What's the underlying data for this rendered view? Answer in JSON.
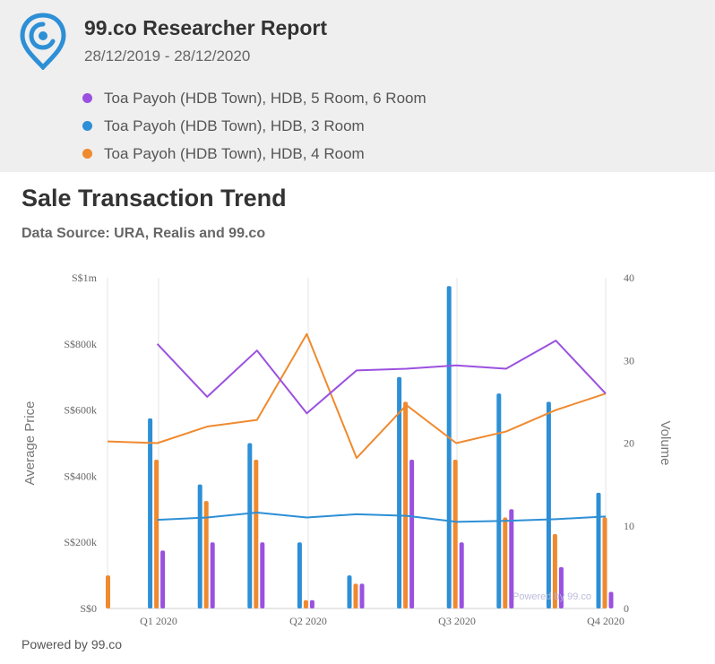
{
  "header": {
    "title": "99.co Researcher Report",
    "date_range": "28/12/2019 - 28/12/2020",
    "logo_icon": "location-pin-icon"
  },
  "section": {
    "title": "Sale Transaction Trend",
    "source": "Data Source: URA, Realis and 99.co"
  },
  "footer": {
    "powered_by": "Powered by 99.co"
  },
  "colors": {
    "purple": "#9b51e0",
    "blue": "#2d8fd6",
    "orange": "#ef8a2f"
  },
  "chart_data": {
    "type": "bar+line",
    "ylabel": "Average Price",
    "y2label": "Volume",
    "ylim": [
      0,
      1000000
    ],
    "y2lim": [
      0,
      40
    ],
    "y_ticks": [
      "S$0",
      "S$200k",
      "S$400k",
      "S$600k",
      "S$800k",
      "S$1m"
    ],
    "y2_ticks": [
      "0",
      "10",
      "20",
      "30",
      "40"
    ],
    "x_ticks": [
      "Q1 2020",
      "Q2 2020",
      "Q3 2020",
      "Q4 2020"
    ],
    "watermark": "Powered by 99.co",
    "grid": "vertical",
    "series": [
      {
        "name": "Toa Payoh (HDB Town), HDB, 5 Room, 6 Room",
        "color": "#9b51e0",
        "volume": [
          0,
          7,
          8,
          8,
          1,
          3,
          18,
          8,
          12,
          5,
          2
        ],
        "avg_price": [
          null,
          800000,
          640000,
          780000,
          590000,
          720000,
          725000,
          735000,
          725000,
          810000,
          650000
        ]
      },
      {
        "name": "Toa Payoh (HDB Town), HDB, 3 Room",
        "color": "#2d8fd6",
        "volume": [
          0,
          23,
          15,
          20,
          8,
          4,
          28,
          39,
          26,
          25,
          14
        ],
        "avg_price": [
          null,
          268000,
          275000,
          290000,
          275000,
          285000,
          280000,
          262000,
          265000,
          270000,
          278000
        ]
      },
      {
        "name": "Toa Payoh (HDB Town), HDB, 4 Room",
        "color": "#ef8a2f",
        "volume": [
          4,
          18,
          13,
          18,
          1,
          3,
          25,
          18,
          11,
          9,
          11
        ],
        "avg_price": [
          505000,
          500000,
          550000,
          570000,
          830000,
          455000,
          615000,
          500000,
          535000,
          600000,
          650000
        ]
      }
    ]
  }
}
